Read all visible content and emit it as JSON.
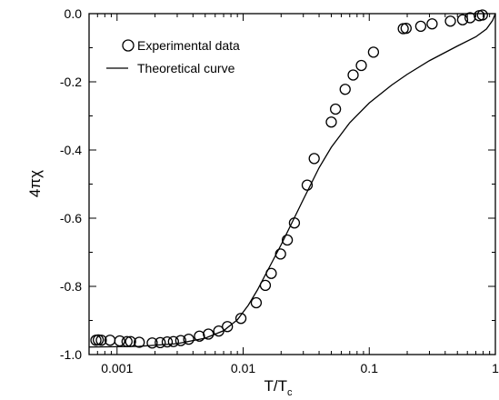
{
  "chart_data": {
    "type": "scatter",
    "xlabel": "T/T",
    "xlabel_sub": "c",
    "ylabel": "4πχ",
    "xscale": "log",
    "xlim": [
      0.0006,
      1
    ],
    "ylim": [
      -1.0,
      0.0
    ],
    "xticks": [
      {
        "value": 0.001,
        "label": "0.001"
      },
      {
        "value": 0.01,
        "label": "0.01"
      },
      {
        "value": 0.1,
        "label": "0.1"
      },
      {
        "value": 1,
        "label": "1"
      }
    ],
    "yticks": [
      {
        "value": 0.0,
        "label": "0.0"
      },
      {
        "value": -0.2,
        "label": "-0.2"
      },
      {
        "value": -0.4,
        "label": "-0.4"
      },
      {
        "value": -0.6,
        "label": "-0.6"
      },
      {
        "value": -0.8,
        "label": "-0.8"
      },
      {
        "value": -1.0,
        "label": "-1.0"
      }
    ],
    "legend": {
      "placement": "top-left",
      "entries": [
        {
          "label": "Experimental data",
          "marker": "open-circle"
        },
        {
          "label": "Theoretical curve",
          "marker": "line"
        }
      ]
    },
    "series": [
      {
        "name": "Experimental data",
        "style": "open-circle",
        "points": [
          [
            0.00068,
            -0.958
          ],
          [
            0.00071,
            -0.957
          ],
          [
            0.00075,
            -0.958
          ],
          [
            0.00088,
            -0.958
          ],
          [
            0.00105,
            -0.96
          ],
          [
            0.0012,
            -0.962
          ],
          [
            0.00128,
            -0.962
          ],
          [
            0.0015,
            -0.964
          ],
          [
            0.0019,
            -0.966
          ],
          [
            0.0022,
            -0.965
          ],
          [
            0.0025,
            -0.963
          ],
          [
            0.0028,
            -0.962
          ],
          [
            0.0032,
            -0.959
          ],
          [
            0.0037,
            -0.955
          ],
          [
            0.0045,
            -0.946
          ],
          [
            0.0053,
            -0.94
          ],
          [
            0.0064,
            -0.931
          ],
          [
            0.0075,
            -0.918
          ],
          [
            0.0096,
            -0.894
          ],
          [
            0.0127,
            -0.848
          ],
          [
            0.015,
            -0.797
          ],
          [
            0.0167,
            -0.762
          ],
          [
            0.0198,
            -0.705
          ],
          [
            0.0224,
            -0.664
          ],
          [
            0.0255,
            -0.614
          ],
          [
            0.0322,
            -0.503
          ],
          [
            0.0366,
            -0.425
          ],
          [
            0.05,
            -0.318
          ],
          [
            0.054,
            -0.28
          ],
          [
            0.0644,
            -0.222
          ],
          [
            0.0745,
            -0.18
          ],
          [
            0.0865,
            -0.152
          ],
          [
            0.108,
            -0.113
          ],
          [
            0.186,
            -0.044
          ],
          [
            0.196,
            -0.043
          ],
          [
            0.256,
            -0.037
          ],
          [
            0.315,
            -0.03
          ],
          [
            0.44,
            -0.022
          ],
          [
            0.55,
            -0.018
          ],
          [
            0.63,
            -0.012
          ],
          [
            0.745,
            -0.006
          ],
          [
            0.79,
            -0.004
          ]
        ]
      },
      {
        "name": "Theoretical curve",
        "style": "line",
        "points": [
          [
            0.0006,
            -0.978
          ],
          [
            0.0015,
            -0.976
          ],
          [
            0.003,
            -0.968
          ],
          [
            0.005,
            -0.952
          ],
          [
            0.007,
            -0.93
          ],
          [
            0.009,
            -0.898
          ],
          [
            0.011,
            -0.855
          ],
          [
            0.013,
            -0.81
          ],
          [
            0.015,
            -0.766
          ],
          [
            0.017,
            -0.728
          ],
          [
            0.02,
            -0.678
          ],
          [
            0.025,
            -0.605
          ],
          [
            0.03,
            -0.545
          ],
          [
            0.04,
            -0.452
          ],
          [
            0.05,
            -0.392
          ],
          [
            0.07,
            -0.32
          ],
          [
            0.1,
            -0.262
          ],
          [
            0.15,
            -0.21
          ],
          [
            0.2,
            -0.178
          ],
          [
            0.3,
            -0.138
          ],
          [
            0.5,
            -0.095
          ],
          [
            0.7,
            -0.068
          ],
          [
            0.85,
            -0.045
          ],
          [
            0.95,
            -0.02
          ],
          [
            1.0,
            0.0
          ]
        ]
      }
    ]
  }
}
